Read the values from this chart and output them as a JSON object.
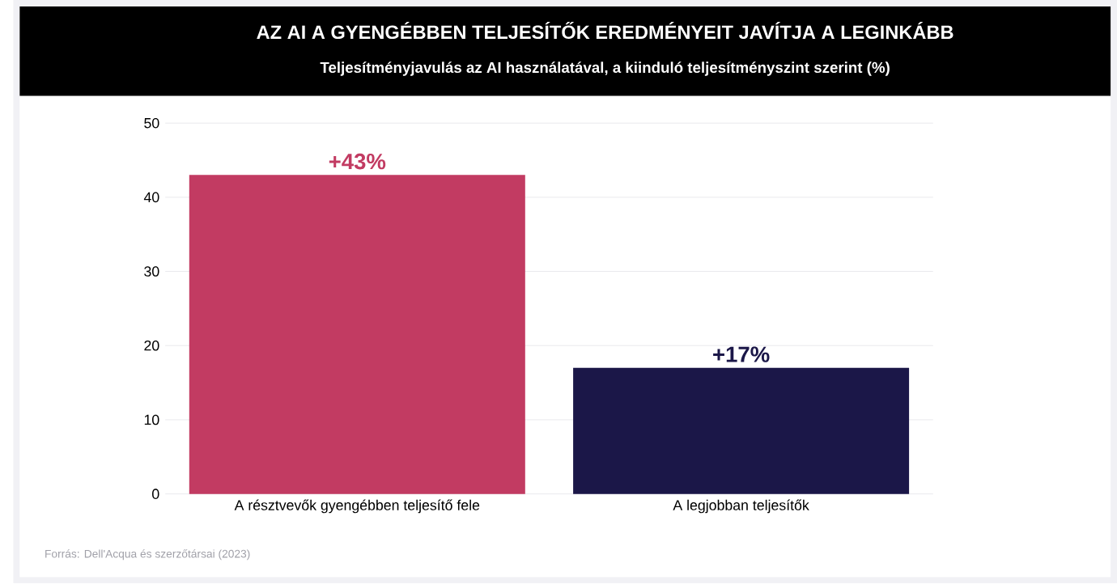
{
  "chart_data": {
    "type": "bar",
    "title": "AZ AI A GYENGÉBBEN TELJESÍTŐK EREDMÉNYEIT JAVÍTJA A LEGINKÁBB",
    "subtitle": "Teljesítményjavulás az AI használatával, a kiinduló teljesítményszint szerint (%)",
    "categories": [
      "A résztvevők gyengébben teljesítő fele",
      "A legjobban teljesítők"
    ],
    "values": [
      43,
      17
    ],
    "colors": [
      "#c23b62",
      "#1b1748"
    ],
    "value_labels": [
      "+43%",
      "+17%"
    ],
    "ylim": [
      0,
      50
    ],
    "yticks": [
      0,
      10,
      20,
      30,
      40,
      50
    ],
    "grid": "y",
    "annotations": [
      "Forrás: Dell'Acqua és szerzőtársai (2023)"
    ]
  }
}
